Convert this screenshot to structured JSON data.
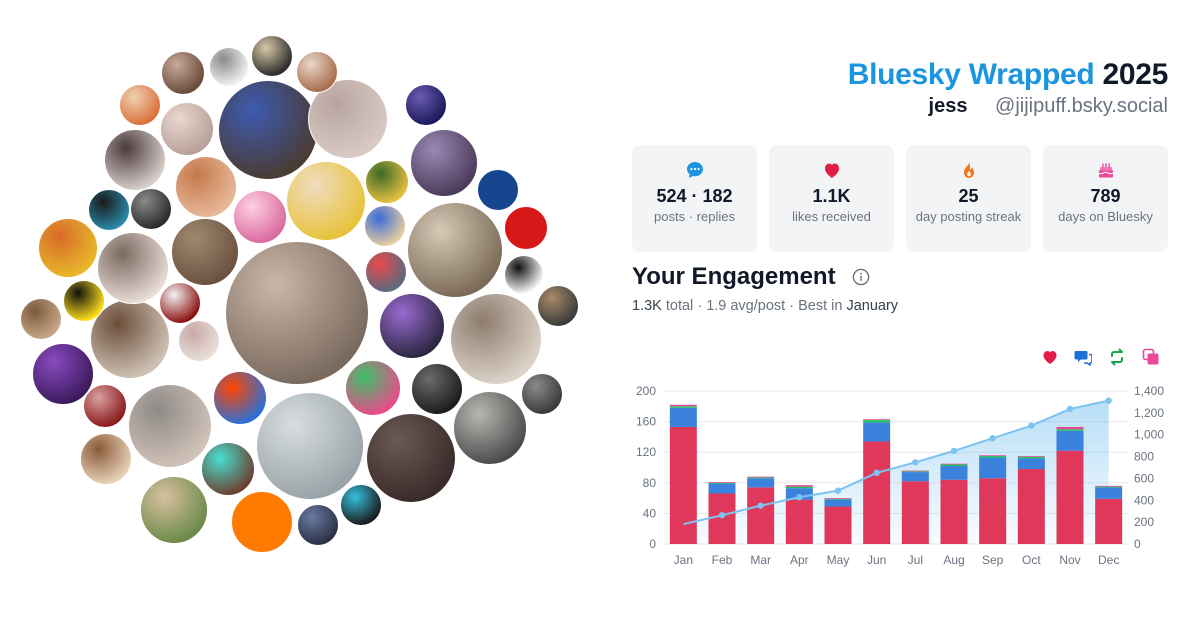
{
  "header": {
    "brand": "Bluesky Wrapped",
    "year": "2025",
    "display_name": "jess",
    "handle": "@jijipuff.bsky.social"
  },
  "stats": [
    {
      "value": "524 · 182",
      "label": "posts · replies",
      "icon": "speech-bubble-icon",
      "color": "#1b95e0"
    },
    {
      "value": "1.1K",
      "label": "likes received",
      "icon": "heart-icon",
      "color": "#e11d48"
    },
    {
      "value": "25",
      "label": "day posting streak",
      "icon": "flame-icon",
      "color": "#f97316"
    },
    {
      "value": "789",
      "label": "days on Bluesky",
      "icon": "cake-icon",
      "color": "#ec4899"
    }
  ],
  "engagement": {
    "title": "Your Engagement",
    "total": "1.3K",
    "total_word": "total",
    "avg": "1.9 avg/post",
    "best_prefix": "Best in",
    "best_month": "January",
    "legend_icons": [
      "heart-icon",
      "reply-icon",
      "repost-icon",
      "quote-icon"
    ],
    "legend_colors": [
      "#e11d48",
      "#1b6fd6",
      "#16a34a",
      "#ec4899"
    ]
  },
  "chart_data": {
    "type": "bar",
    "categories": [
      "Jan",
      "Feb",
      "Mar",
      "Apr",
      "May",
      "Jun",
      "Jul",
      "Aug",
      "Sep",
      "Oct",
      "Nov",
      "Dec"
    ],
    "series": [
      {
        "values": [
          153,
          66,
          74,
          58,
          49,
          134,
          82,
          84,
          86,
          98,
          122,
          59
        ],
        "color": "#e0385a"
      },
      {
        "values": [
          25,
          13,
          12,
          15,
          9,
          25,
          12,
          18,
          27,
          14,
          26,
          15
        ],
        "color": "#3b82dc"
      },
      {
        "values": [
          2,
          1,
          1,
          2,
          1,
          3,
          1,
          2,
          2,
          2,
          2,
          1
        ],
        "color": "#22c55e"
      },
      {
        "values": [
          2,
          1,
          1,
          2,
          1,
          1,
          1,
          1,
          1,
          1,
          3,
          1
        ],
        "color": "#ec4899"
      }
    ],
    "cumulative": {
      "values": [
        182,
        263,
        351,
        428,
        488,
        651,
        747,
        852,
        968,
        1083,
        1236,
        1312
      ],
      "color": "#7cc3f0"
    },
    "ylim": [
      0,
      200
    ],
    "yticks": [
      0,
      40,
      80,
      120,
      160,
      200
    ],
    "y2lim": [
      0,
      1400
    ],
    "y2ticks": [
      "0",
      "200",
      "400",
      "600",
      "800",
      "1,000",
      "1,200",
      "1,400"
    ],
    "grid": true
  }
}
